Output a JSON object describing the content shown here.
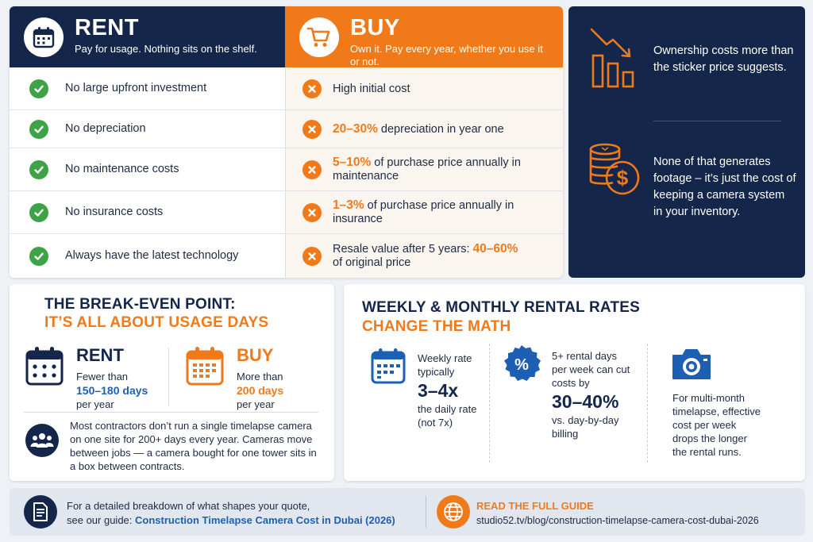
{
  "rent": {
    "title": "RENT",
    "subtitle": "Pay for usage. Nothing sits on the shelf.",
    "rows": [
      {
        "text": "No large upfront investment"
      },
      {
        "text": "No depreciation"
      },
      {
        "text": "No maintenance costs"
      },
      {
        "text": "No insurance costs"
      },
      {
        "text": "Always have the latest technology"
      }
    ]
  },
  "buy": {
    "title": "BUY",
    "subtitle": "Own it. Pay every year, whether you use it or not.",
    "rows": [
      {
        "pre": "",
        "hl": "",
        "post": "High initial cost"
      },
      {
        "pre": "",
        "hl": "20–30%",
        "post": " depreciation in year one"
      },
      {
        "pre": "",
        "hl": "5–10%",
        "post": " of purchase price annually in maintenance"
      },
      {
        "pre": "",
        "hl": "1–3%",
        "post": " of purchase price annually in insurance"
      },
      {
        "pre": "Resale value after 5 years: ",
        "hl": "40–60%",
        "post": " of original price"
      }
    ]
  },
  "facts": {
    "fact1": "Ownership costs more than the sticker price suggests.",
    "fact2": "None of that generates footage – it’s just the cost of keeping a camera system in your inventory."
  },
  "breakeven": {
    "title1": "THE BREAK-EVEN POINT:",
    "title2": "IT’S ALL ABOUT USAGE DAYS",
    "rent": {
      "name": "RENT",
      "l1": "Fewer than",
      "l2": "150–180 days",
      "l3": "per year"
    },
    "buy": {
      "name": "BUY",
      "l1": "More than",
      "l2": "200 days",
      "l3": "per year"
    },
    "note": "Most contractors don’t run a single timelapse camera on one site for 200+ days every year. Cameras move between jobs — a camera bought for one tower sits in a box between contracts."
  },
  "rates": {
    "title1": "WEEKLY & MONTHLY RENTAL RATES",
    "title2": "CHANGE THE MATH",
    "weekly": {
      "l1": "Weekly rate",
      "l2": "typically",
      "big": "3–4x",
      "l3": "the daily rate",
      "l4": "(not 7x)"
    },
    "discount": {
      "l1": "5+ rental days",
      "l2": "per week can cut",
      "l3": "costs by",
      "big": "30–40%",
      "l4": "vs. day-by-day",
      "l5": "billing"
    },
    "monthly": {
      "l1": "For multi-month",
      "l2": "timelapse, effective",
      "l3": "cost per week",
      "l4": "drops the longer",
      "l5": "the rental runs."
    }
  },
  "footer": {
    "line1": "For a detailed breakdown of what shapes your quote,",
    "line2_pre": "see our guide: ",
    "link": "Construction Timelapse Camera Cost in Dubai (2026)",
    "cta": "READ THE FULL GUIDE",
    "url": "studio52.tv/blog/construction-timelapse-camera-cost-dubai-2026"
  },
  "colors": {
    "navy": "#14264a",
    "orange": "#f07a1a",
    "green": "#3ea346",
    "blue": "#1d5fb3"
  },
  "icons": [
    "calendar-icon",
    "cart-icon",
    "check-icon",
    "x-icon",
    "declining-chart-icon",
    "coins-dollar-icon",
    "people-icon",
    "percent-badge-icon",
    "camera-icon",
    "document-icon",
    "globe-icon"
  ]
}
